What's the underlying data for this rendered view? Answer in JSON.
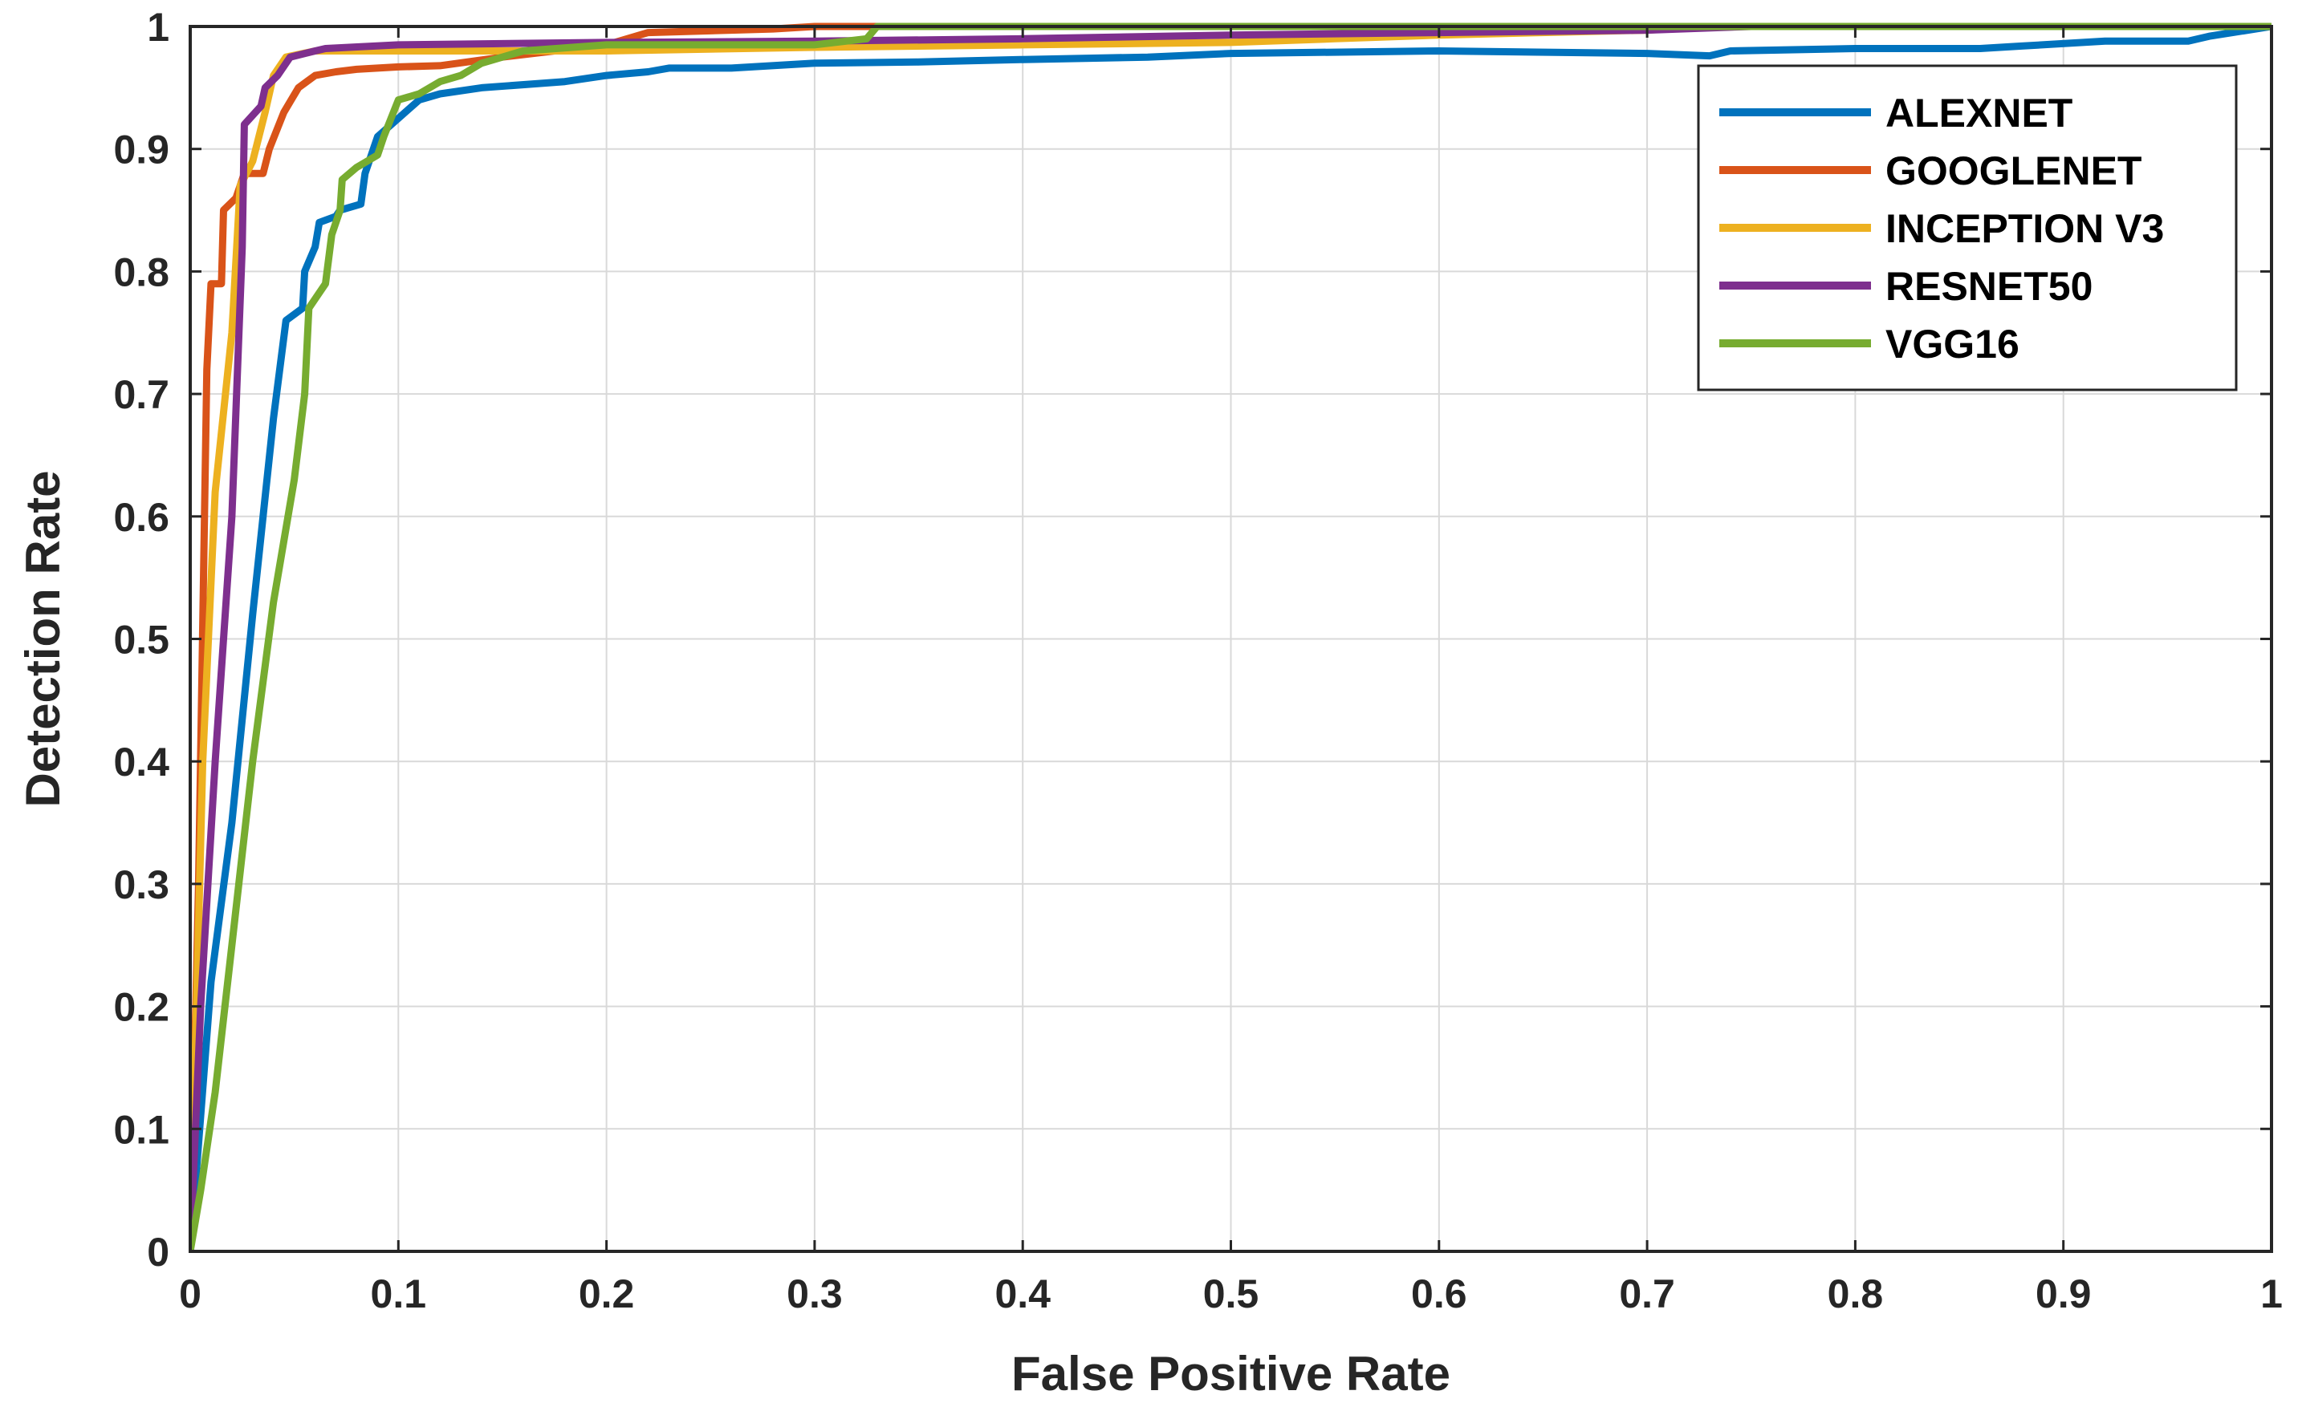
{
  "chart_data": {
    "type": "line",
    "title": "",
    "xlabel": "False Positive Rate",
    "ylabel": "Detection Rate",
    "xlim": [
      0,
      1
    ],
    "ylim": [
      0,
      1
    ],
    "xticks": [
      0,
      0.1,
      0.2,
      0.3,
      0.4,
      0.5,
      0.6,
      0.7,
      0.8,
      0.9,
      1
    ],
    "xtick_labels": [
      "0",
      "0.1",
      "0.2",
      "0.3",
      "0.4",
      "0.5",
      "0.6",
      "0.7",
      "0.8",
      "0.9",
      "1"
    ],
    "yticks": [
      0,
      0.1,
      0.2,
      0.3,
      0.4,
      0.5,
      0.6,
      0.7,
      0.8,
      0.9,
      1
    ],
    "ytick_labels": [
      "0",
      "0.1",
      "0.2",
      "0.3",
      "0.4",
      "0.5",
      "0.6",
      "0.7",
      "0.8",
      "0.9",
      "1"
    ],
    "grid": true,
    "legend_position": "top-right",
    "series": [
      {
        "name": "ALEXNET",
        "color": "#0072BD",
        "points": [
          [
            0,
            0
          ],
          [
            0.01,
            0.22
          ],
          [
            0.02,
            0.35
          ],
          [
            0.03,
            0.52
          ],
          [
            0.04,
            0.68
          ],
          [
            0.046,
            0.76
          ],
          [
            0.054,
            0.77
          ],
          [
            0.055,
            0.8
          ],
          [
            0.06,
            0.82
          ],
          [
            0.062,
            0.84
          ],
          [
            0.07,
            0.845
          ],
          [
            0.072,
            0.85
          ],
          [
            0.082,
            0.855
          ],
          [
            0.084,
            0.88
          ],
          [
            0.088,
            0.9
          ],
          [
            0.09,
            0.91
          ],
          [
            0.1,
            0.925
          ],
          [
            0.11,
            0.94
          ],
          [
            0.12,
            0.945
          ],
          [
            0.14,
            0.95
          ],
          [
            0.18,
            0.955
          ],
          [
            0.2,
            0.96
          ],
          [
            0.22,
            0.963
          ],
          [
            0.23,
            0.966
          ],
          [
            0.26,
            0.966
          ],
          [
            0.3,
            0.97
          ],
          [
            0.35,
            0.971
          ],
          [
            0.4,
            0.973
          ],
          [
            0.46,
            0.975
          ],
          [
            0.5,
            0.978
          ],
          [
            0.6,
            0.98
          ],
          [
            0.7,
            0.978
          ],
          [
            0.73,
            0.976
          ],
          [
            0.74,
            0.98
          ],
          [
            0.8,
            0.982
          ],
          [
            0.86,
            0.982
          ],
          [
            0.88,
            0.984
          ],
          [
            0.92,
            0.988
          ],
          [
            0.96,
            0.988
          ],
          [
            0.97,
            0.992
          ],
          [
            1,
            1
          ]
        ]
      },
      {
        "name": "GOOGLENET",
        "color": "#D95319",
        "points": [
          [
            0,
            0
          ],
          [
            0.004,
            0.3
          ],
          [
            0.008,
            0.72
          ],
          [
            0.01,
            0.79
          ],
          [
            0.015,
            0.79
          ],
          [
            0.016,
            0.85
          ],
          [
            0.022,
            0.86
          ],
          [
            0.026,
            0.88
          ],
          [
            0.035,
            0.88
          ],
          [
            0.038,
            0.9
          ],
          [
            0.045,
            0.93
          ],
          [
            0.052,
            0.95
          ],
          [
            0.06,
            0.96
          ],
          [
            0.07,
            0.963
          ],
          [
            0.08,
            0.965
          ],
          [
            0.1,
            0.967
          ],
          [
            0.12,
            0.968
          ],
          [
            0.15,
            0.975
          ],
          [
            0.2,
            0.985
          ],
          [
            0.22,
            0.995
          ],
          [
            0.28,
            0.998
          ],
          [
            0.3,
            1
          ],
          [
            0.4,
            1
          ],
          [
            1,
            1
          ]
        ]
      },
      {
        "name": "INCEPTION V3",
        "color": "#EDB120",
        "points": [
          [
            0,
            0
          ],
          [
            0.006,
            0.4
          ],
          [
            0.012,
            0.62
          ],
          [
            0.02,
            0.75
          ],
          [
            0.024,
            0.87
          ],
          [
            0.03,
            0.89
          ],
          [
            0.036,
            0.93
          ],
          [
            0.04,
            0.96
          ],
          [
            0.046,
            0.975
          ],
          [
            0.06,
            0.98
          ],
          [
            0.1,
            0.98
          ],
          [
            0.2,
            0.98
          ],
          [
            0.3,
            0.983
          ],
          [
            0.4,
            0.985
          ],
          [
            0.5,
            0.987
          ],
          [
            0.55,
            0.99
          ],
          [
            0.6,
            0.993
          ],
          [
            0.7,
            0.997
          ],
          [
            0.73,
            1
          ],
          [
            1,
            1
          ]
        ]
      },
      {
        "name": "RESNET50",
        "color": "#7E2F8E",
        "points": [
          [
            0,
            0
          ],
          [
            0.005,
            0.2
          ],
          [
            0.012,
            0.4
          ],
          [
            0.02,
            0.6
          ],
          [
            0.025,
            0.82
          ],
          [
            0.026,
            0.92
          ],
          [
            0.034,
            0.935
          ],
          [
            0.036,
            0.95
          ],
          [
            0.042,
            0.96
          ],
          [
            0.048,
            0.975
          ],
          [
            0.06,
            0.98
          ],
          [
            0.065,
            0.982
          ],
          [
            0.1,
            0.985
          ],
          [
            0.2,
            0.987
          ],
          [
            0.3,
            0.988
          ],
          [
            0.4,
            0.99
          ],
          [
            0.5,
            0.993
          ],
          [
            0.6,
            0.995
          ],
          [
            0.7,
            0.997
          ],
          [
            0.75,
            1
          ],
          [
            1,
            1
          ]
        ]
      },
      {
        "name": "VGG16",
        "color": "#77AC30",
        "points": [
          [
            0,
            0
          ],
          [
            0.005,
            0.05
          ],
          [
            0.012,
            0.13
          ],
          [
            0.02,
            0.25
          ],
          [
            0.03,
            0.4
          ],
          [
            0.04,
            0.53
          ],
          [
            0.05,
            0.63
          ],
          [
            0.055,
            0.7
          ],
          [
            0.057,
            0.77
          ],
          [
            0.065,
            0.79
          ],
          [
            0.068,
            0.83
          ],
          [
            0.072,
            0.85
          ],
          [
            0.073,
            0.875
          ],
          [
            0.08,
            0.885
          ],
          [
            0.085,
            0.89
          ],
          [
            0.09,
            0.895
          ],
          [
            0.093,
            0.91
          ],
          [
            0.1,
            0.94
          ],
          [
            0.11,
            0.945
          ],
          [
            0.12,
            0.955
          ],
          [
            0.13,
            0.96
          ],
          [
            0.14,
            0.97
          ],
          [
            0.16,
            0.98
          ],
          [
            0.2,
            0.985
          ],
          [
            0.3,
            0.985
          ],
          [
            0.325,
            0.99
          ],
          [
            0.33,
            1
          ],
          [
            0.5,
            1
          ],
          [
            1,
            1
          ]
        ]
      }
    ]
  }
}
